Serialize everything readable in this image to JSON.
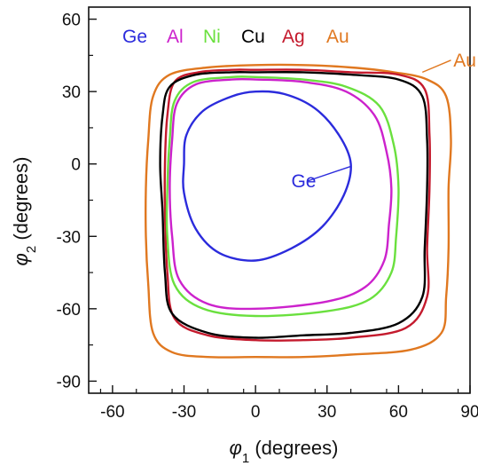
{
  "chart_data": {
    "type": "line",
    "xlabel_symbol": "φ",
    "xlabel_sub": "1",
    "xlabel_rest": " (degrees)",
    "ylabel_symbol": "φ",
    "ylabel_sub": "2",
    "ylabel_rest": " (degrees)",
    "xlim": [
      -70,
      90
    ],
    "ylim": [
      -95,
      65
    ],
    "xticks": [
      -60,
      -30,
      0,
      30,
      60,
      90
    ],
    "yticks": [
      -90,
      -60,
      -30,
      0,
      30,
      60
    ],
    "xtick_labels": [
      "-60",
      "-30",
      "0",
      "30",
      "60",
      "90"
    ],
    "ytick_labels": [
      "-90",
      "-60",
      "-30",
      "0",
      "30",
      "60"
    ],
    "grid": false,
    "legend_position": "top-left",
    "series": [
      {
        "name": "Ge",
        "color": "#2b2bdc",
        "points": [
          [
            0,
            30
          ],
          [
            12,
            29
          ],
          [
            25,
            23
          ],
          [
            35,
            12
          ],
          [
            40,
            0
          ],
          [
            37,
            -13
          ],
          [
            28,
            -26
          ],
          [
            15,
            -35
          ],
          [
            0,
            -40
          ],
          [
            -15,
            -37
          ],
          [
            -25,
            -27
          ],
          [
            -30,
            -12
          ],
          [
            -30,
            0
          ],
          [
            -29,
            12
          ],
          [
            -22,
            22
          ],
          [
            -10,
            28
          ]
        ]
      },
      {
        "name": "Al",
        "color": "#cc22cc",
        "points": [
          [
            0,
            35
          ],
          [
            20,
            34
          ],
          [
            38,
            30
          ],
          [
            50,
            20
          ],
          [
            55,
            5
          ],
          [
            57,
            -10
          ],
          [
            56,
            -25
          ],
          [
            54,
            -40
          ],
          [
            46,
            -51
          ],
          [
            30,
            -57
          ],
          [
            0,
            -60
          ],
          [
            -20,
            -58
          ],
          [
            -32,
            -48
          ],
          [
            -35,
            -30
          ],
          [
            -36,
            -10
          ],
          [
            -35,
            10
          ],
          [
            -33,
            25
          ],
          [
            -25,
            33
          ],
          [
            -10,
            35
          ]
        ]
      },
      {
        "name": "Ni",
        "color": "#6ae03e",
        "points": [
          [
            0,
            36
          ],
          [
            20,
            35
          ],
          [
            38,
            32
          ],
          [
            52,
            24
          ],
          [
            58,
            8
          ],
          [
            60,
            -10
          ],
          [
            59,
            -30
          ],
          [
            57,
            -45
          ],
          [
            48,
            -56
          ],
          [
            30,
            -61
          ],
          [
            0,
            -63
          ],
          [
            -22,
            -60
          ],
          [
            -34,
            -50
          ],
          [
            -37,
            -30
          ],
          [
            -37,
            -10
          ],
          [
            -36,
            10
          ],
          [
            -34,
            26
          ],
          [
            -26,
            34
          ],
          [
            -10,
            36
          ]
        ]
      },
      {
        "name": "Cu",
        "color": "#000000",
        "points": [
          [
            0,
            38
          ],
          [
            20,
            38
          ],
          [
            40,
            37
          ],
          [
            60,
            35
          ],
          [
            70,
            28
          ],
          [
            72,
            10
          ],
          [
            72,
            -10
          ],
          [
            71,
            -35
          ],
          [
            70,
            -55
          ],
          [
            60,
            -66
          ],
          [
            40,
            -70
          ],
          [
            20,
            -71
          ],
          [
            0,
            -72
          ],
          [
            -20,
            -70
          ],
          [
            -35,
            -62
          ],
          [
            -38,
            -45
          ],
          [
            -39,
            -20
          ],
          [
            -40,
            0
          ],
          [
            -39,
            20
          ],
          [
            -36,
            32
          ],
          [
            -25,
            37
          ],
          [
            -10,
            38
          ]
        ]
      },
      {
        "name": "Ag",
        "color": "#c41a2d",
        "points": [
          [
            0,
            39
          ],
          [
            20,
            39
          ],
          [
            40,
            38
          ],
          [
            60,
            37
          ],
          [
            71,
            31
          ],
          [
            73,
            12
          ],
          [
            73,
            -10
          ],
          [
            72,
            -35
          ],
          [
            72,
            -55
          ],
          [
            63,
            -68
          ],
          [
            40,
            -72
          ],
          [
            20,
            -73
          ],
          [
            0,
            -73
          ],
          [
            -20,
            -71
          ],
          [
            -34,
            -64
          ],
          [
            -37,
            -45
          ],
          [
            -38,
            -20
          ],
          [
            -38,
            0
          ],
          [
            -37,
            20
          ],
          [
            -34,
            34
          ],
          [
            -24,
            38
          ],
          [
            -10,
            39
          ]
        ]
      },
      {
        "name": "Au",
        "color": "#e07820",
        "points": [
          [
            0,
            41
          ],
          [
            20,
            41
          ],
          [
            40,
            40
          ],
          [
            58,
            38
          ],
          [
            72,
            35
          ],
          [
            80,
            28
          ],
          [
            82,
            10
          ],
          [
            81,
            -10
          ],
          [
            81,
            -35
          ],
          [
            80,
            -55
          ],
          [
            78,
            -70
          ],
          [
            65,
            -77
          ],
          [
            40,
            -79
          ],
          [
            20,
            -80
          ],
          [
            0,
            -80
          ],
          [
            -20,
            -80
          ],
          [
            -35,
            -78
          ],
          [
            -43,
            -70
          ],
          [
            -45,
            -50
          ],
          [
            -46,
            -30
          ],
          [
            -46,
            -10
          ],
          [
            -45,
            10
          ],
          [
            -43,
            28
          ],
          [
            -36,
            37
          ],
          [
            -20,
            40
          ]
        ]
      }
    ],
    "annotations": [
      {
        "text": "Ge",
        "color": "#2b2bdc",
        "label_at": [
          15,
          -7
        ],
        "line_from": [
          22,
          -7
        ],
        "line_to": [
          40,
          -1
        ]
      },
      {
        "text": "Au",
        "color": "#e07820",
        "label_at": [
          83,
          43
        ],
        "line_from": [
          82,
          43
        ],
        "line_to": [
          70,
          38
        ]
      }
    ]
  }
}
